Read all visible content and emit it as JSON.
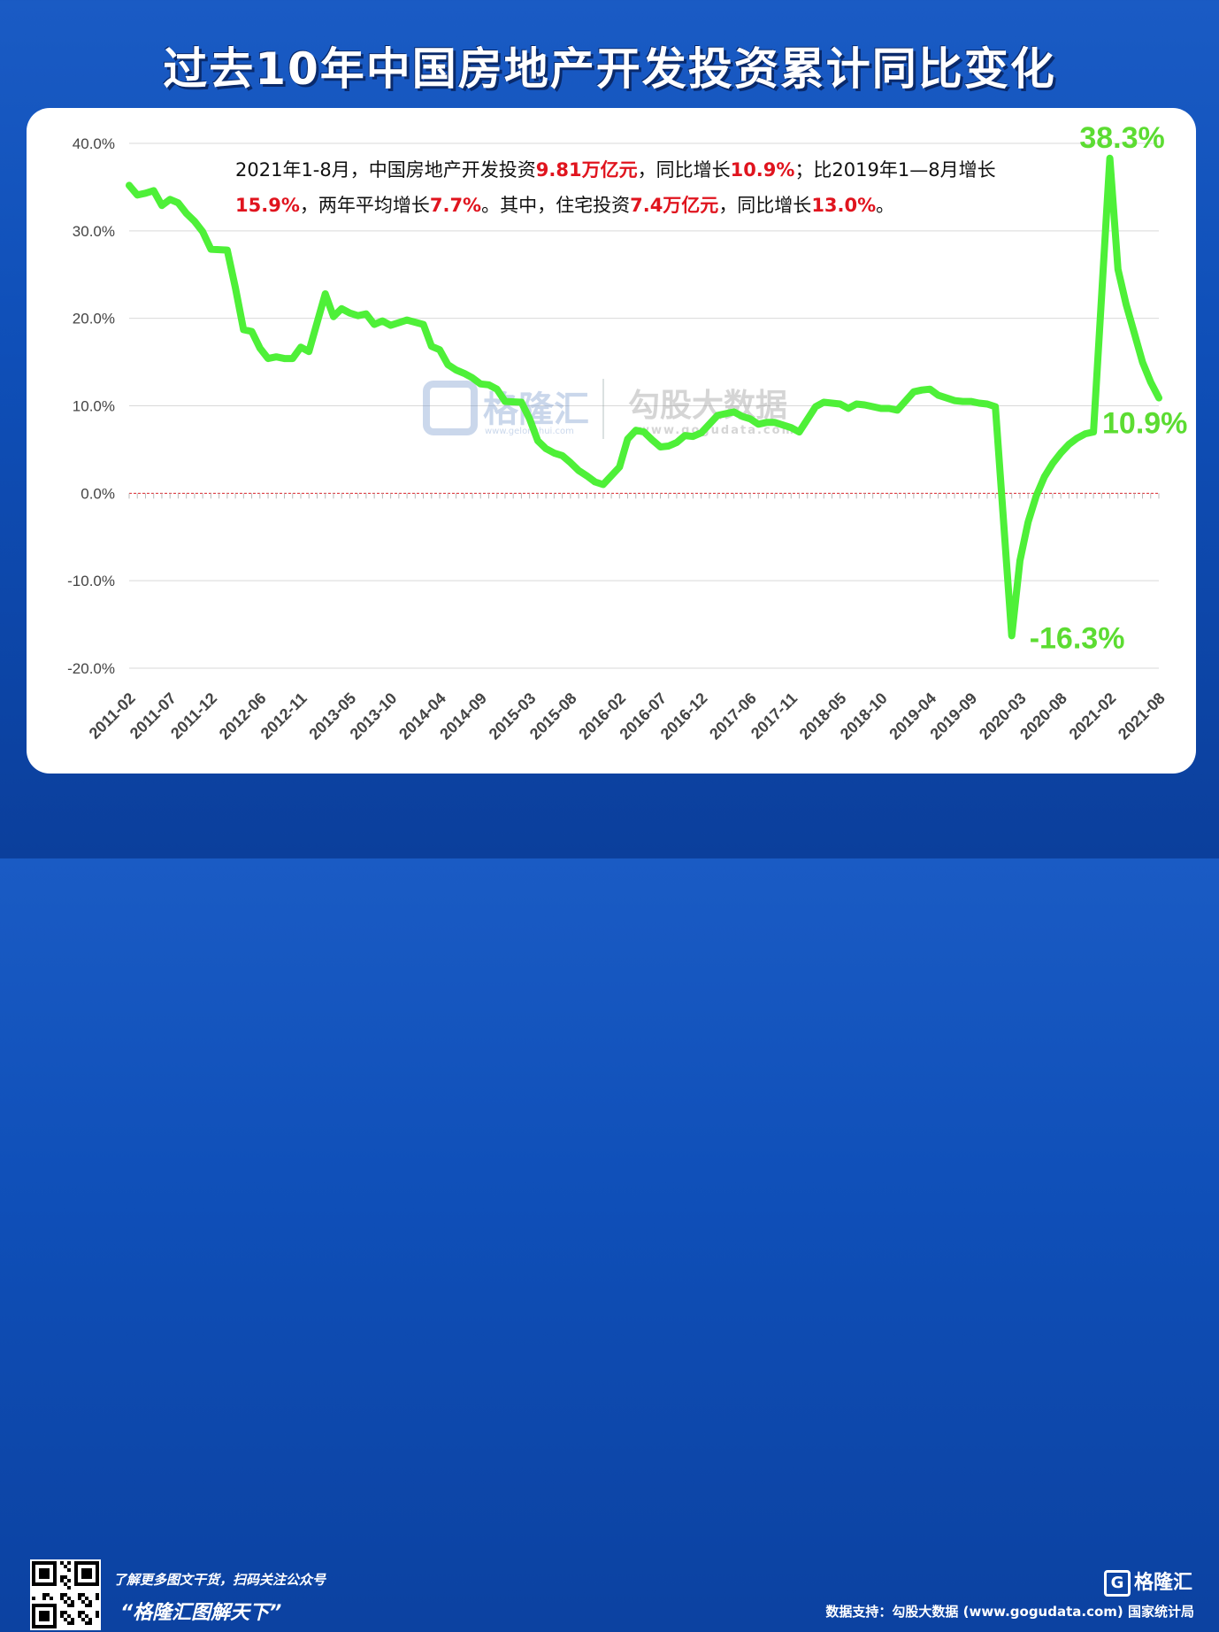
{
  "title": "过去10年中国房地产开发投资累计同比变化",
  "summary": {
    "segments": [
      {
        "text": "2021年1-8月，中国房地产开发投资",
        "highlight": false
      },
      {
        "text": "9.81万亿元",
        "highlight": true
      },
      {
        "text": "，同比增长",
        "highlight": false
      },
      {
        "text": "10.9%",
        "highlight": true
      },
      {
        "text": "；比2019年1—8月增长",
        "highlight": false
      },
      {
        "text": "15.9%",
        "highlight": true
      },
      {
        "text": "，两年平均增长",
        "highlight": false
      },
      {
        "text": "7.7%",
        "highlight": true
      },
      {
        "text": "。其中，住宅投资",
        "highlight": false
      },
      {
        "text": "7.4万亿元",
        "highlight": true
      },
      {
        "text": "，同比增长",
        "highlight": false
      },
      {
        "text": "13.0%",
        "highlight": true
      },
      {
        "text": "。",
        "highlight": false
      }
    ]
  },
  "chart_data": {
    "type": "line",
    "yticks": [
      "40.0%",
      "30.0%",
      "20.0%",
      "10.0%",
      "0.0%",
      "-10.0%",
      "-20.0%"
    ],
    "ylim": [
      -20,
      40
    ],
    "xticks": [
      "2011-02",
      "2011-07",
      "2011-12",
      "2012-06",
      "2012-11",
      "2013-05",
      "2013-10",
      "2014-04",
      "2014-09",
      "2015-03",
      "2015-08",
      "2016-02",
      "2016-07",
      "2016-12",
      "2017-06",
      "2017-11",
      "2018-05",
      "2018-10",
      "2019-04",
      "2019-09",
      "2020-03",
      "2020-08",
      "2021-02",
      "2021-08"
    ],
    "reference_line": 0,
    "series": [
      {
        "color": "#4ef038",
        "points": [
          [
            "2011-02",
            35.2
          ],
          [
            "2011-03",
            34.1
          ],
          [
            "2011-04",
            34.3
          ],
          [
            "2011-05",
            34.6
          ],
          [
            "2011-06",
            32.9
          ],
          [
            "2011-07",
            33.6
          ],
          [
            "2011-08",
            33.2
          ],
          [
            "2011-09",
            32.0
          ],
          [
            "2011-10",
            31.1
          ],
          [
            "2011-11",
            29.9
          ],
          [
            "2011-12",
            27.9
          ],
          [
            "2012-02",
            27.8
          ],
          [
            "2012-03",
            23.5
          ],
          [
            "2012-04",
            18.7
          ],
          [
            "2012-05",
            18.5
          ],
          [
            "2012-06",
            16.6
          ],
          [
            "2012-07",
            15.4
          ],
          [
            "2012-08",
            15.6
          ],
          [
            "2012-09",
            15.4
          ],
          [
            "2012-10",
            15.4
          ],
          [
            "2012-11",
            16.7
          ],
          [
            "2012-12",
            16.2
          ],
          [
            "2013-02",
            22.8
          ],
          [
            "2013-03",
            20.2
          ],
          [
            "2013-04",
            21.1
          ],
          [
            "2013-05",
            20.6
          ],
          [
            "2013-06",
            20.3
          ],
          [
            "2013-07",
            20.5
          ],
          [
            "2013-08",
            19.3
          ],
          [
            "2013-09",
            19.7
          ],
          [
            "2013-10",
            19.2
          ],
          [
            "2013-11",
            19.5
          ],
          [
            "2013-12",
            19.8
          ],
          [
            "2014-02",
            19.3
          ],
          [
            "2014-03",
            16.8
          ],
          [
            "2014-04",
            16.4
          ],
          [
            "2014-05",
            14.7
          ],
          [
            "2014-06",
            14.1
          ],
          [
            "2014-07",
            13.7
          ],
          [
            "2014-08",
            13.2
          ],
          [
            "2014-09",
            12.5
          ],
          [
            "2014-10",
            12.4
          ],
          [
            "2014-11",
            11.9
          ],
          [
            "2014-12",
            10.5
          ],
          [
            "2015-02",
            10.4
          ],
          [
            "2015-03",
            8.5
          ],
          [
            "2015-04",
            6.0
          ],
          [
            "2015-05",
            5.1
          ],
          [
            "2015-06",
            4.6
          ],
          [
            "2015-07",
            4.3
          ],
          [
            "2015-08",
            3.5
          ],
          [
            "2015-09",
            2.6
          ],
          [
            "2015-10",
            2.0
          ],
          [
            "2015-11",
            1.3
          ],
          [
            "2015-12",
            1.0
          ],
          [
            "2016-02",
            3.0
          ],
          [
            "2016-03",
            6.2
          ],
          [
            "2016-04",
            7.2
          ],
          [
            "2016-05",
            7.0
          ],
          [
            "2016-06",
            6.1
          ],
          [
            "2016-07",
            5.3
          ],
          [
            "2016-08",
            5.4
          ],
          [
            "2016-09",
            5.8
          ],
          [
            "2016-10",
            6.6
          ],
          [
            "2016-11",
            6.5
          ],
          [
            "2016-12",
            6.9
          ],
          [
            "2017-02",
            8.9
          ],
          [
            "2017-03",
            9.1
          ],
          [
            "2017-04",
            9.3
          ],
          [
            "2017-05",
            8.8
          ],
          [
            "2017-06",
            8.5
          ],
          [
            "2017-07",
            7.9
          ],
          [
            "2017-08",
            8.1
          ],
          [
            "2017-09",
            8.1
          ],
          [
            "2017-10",
            7.8
          ],
          [
            "2017-11",
            7.5
          ],
          [
            "2017-12",
            7.0
          ],
          [
            "2018-02",
            9.9
          ],
          [
            "2018-03",
            10.4
          ],
          [
            "2018-04",
            10.3
          ],
          [
            "2018-05",
            10.2
          ],
          [
            "2018-06",
            9.7
          ],
          [
            "2018-07",
            10.2
          ],
          [
            "2018-08",
            10.1
          ],
          [
            "2018-09",
            9.9
          ],
          [
            "2018-10",
            9.7
          ],
          [
            "2018-11",
            9.7
          ],
          [
            "2018-12",
            9.5
          ],
          [
            "2019-02",
            11.6
          ],
          [
            "2019-03",
            11.8
          ],
          [
            "2019-04",
            11.9
          ],
          [
            "2019-05",
            11.2
          ],
          [
            "2019-06",
            10.9
          ],
          [
            "2019-07",
            10.6
          ],
          [
            "2019-08",
            10.5
          ],
          [
            "2019-09",
            10.5
          ],
          [
            "2019-10",
            10.3
          ],
          [
            "2019-11",
            10.2
          ],
          [
            "2019-12",
            9.9
          ],
          [
            "2020-02",
            -16.3
          ],
          [
            "2020-03",
            -7.7
          ],
          [
            "2020-04",
            -3.3
          ],
          [
            "2020-05",
            -0.3
          ],
          [
            "2020-06",
            1.9
          ],
          [
            "2020-07",
            3.4
          ],
          [
            "2020-08",
            4.6
          ],
          [
            "2020-09",
            5.6
          ],
          [
            "2020-10",
            6.3
          ],
          [
            "2020-11",
            6.8
          ],
          [
            "2020-12",
            7.0
          ],
          [
            "2021-02",
            38.3
          ],
          [
            "2021-03",
            25.6
          ],
          [
            "2021-04",
            21.6
          ],
          [
            "2021-05",
            18.3
          ],
          [
            "2021-06",
            15.0
          ],
          [
            "2021-07",
            12.7
          ],
          [
            "2021-08",
            10.9
          ]
        ]
      }
    ],
    "annotations": [
      {
        "text": "38.3%",
        "at": "2021-02",
        "value": 38.3
      },
      {
        "text": "-16.3%",
        "at": "2020-02",
        "value": -16.3
      },
      {
        "text": "10.9%",
        "at": "2021-08",
        "value": 10.9
      }
    ]
  },
  "watermark": {
    "brand": "格隆汇",
    "brand_url": "www.gelonghui.com",
    "partner": "勾股大数据",
    "partner_url": "www.gogudata.com"
  },
  "footer": {
    "note": "了解更多图文干货，扫码关注公众号",
    "slogan": "“格隆汇图解天下”",
    "source": "数据支持：勾股大数据 (www.gogudata.com) 国家统计局",
    "brand": "格隆汇",
    "brand_icon": "G"
  },
  "colors": {
    "line": "#4ef038",
    "highlight": "#e0141e",
    "reference": "#d9262c",
    "background": "#0f4fb8"
  }
}
